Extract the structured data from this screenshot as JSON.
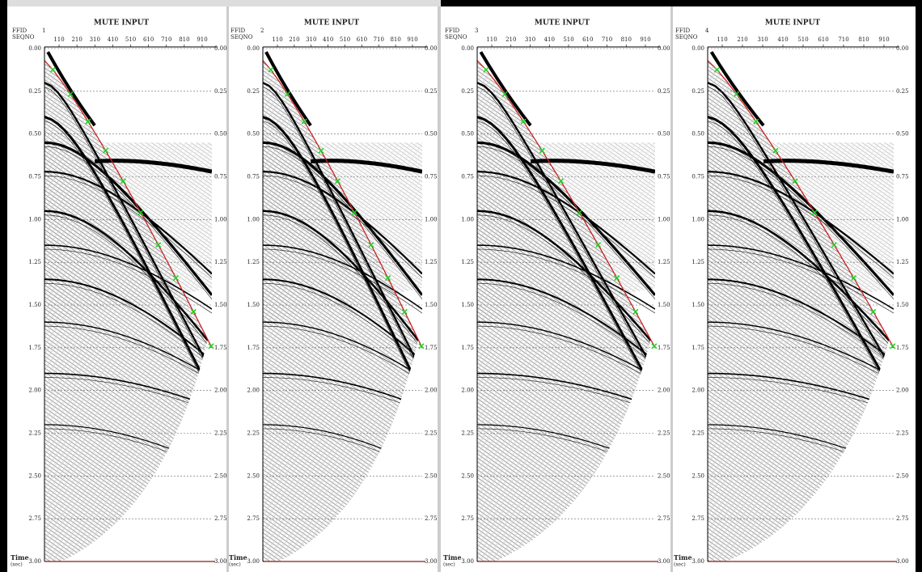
{
  "panels": [
    {
      "title": "MUTE INPUT",
      "ffid_label": "FFID",
      "seqno_label": "SEQNO",
      "ffid": "1",
      "x_ticks": [
        "110",
        "210",
        "310",
        "410",
        "510",
        "610",
        "710",
        "810",
        "910"
      ],
      "y_ticks": [
        "0.00",
        "0.25",
        "0.50",
        "0.75",
        "1.00",
        "1.25",
        "1.50",
        "1.75",
        "2.00",
        "2.25",
        "2.50",
        "2.75",
        "3.00"
      ],
      "time_label": "Time",
      "time_unit": "(sec)"
    },
    {
      "title": "MUTE INPUT",
      "ffid_label": "FFID",
      "seqno_label": "SEQNO",
      "ffid": "2",
      "x_ticks": [
        "110",
        "210",
        "310",
        "410",
        "510",
        "610",
        "710",
        "810",
        "910"
      ],
      "y_ticks": [
        "0.00",
        "0.25",
        "0.50",
        "0.75",
        "1.00",
        "1.25",
        "1.50",
        "1.75",
        "2.00",
        "2.25",
        "2.50",
        "2.75",
        "3.00"
      ],
      "time_label": "Time",
      "time_unit": "(sec)"
    },
    {
      "title": "MUTE INPUT",
      "ffid_label": "FFID",
      "seqno_label": "SEQNO",
      "ffid": "3",
      "x_ticks": [
        "110",
        "210",
        "310",
        "410",
        "510",
        "610",
        "710",
        "810",
        "910"
      ],
      "y_ticks": [
        "0.00",
        "0.25",
        "0.50",
        "0.75",
        "1.00",
        "1.25",
        "1.50",
        "1.75",
        "2.00",
        "2.25",
        "2.50",
        "2.75",
        "3.00"
      ],
      "time_label": "Time",
      "time_unit": "(sec)"
    },
    {
      "title": "MUTE INPUT",
      "ffid_label": "FFID",
      "seqno_label": "SEQNO",
      "ffid": "4",
      "x_ticks": [
        "110",
        "210",
        "310",
        "410",
        "510",
        "610",
        "710",
        "810",
        "910"
      ],
      "y_ticks": [
        "0.00",
        "0.25",
        "0.50",
        "0.75",
        "1.00",
        "1.25",
        "1.50",
        "1.75",
        "2.00",
        "2.25",
        "2.50",
        "2.75",
        "3.00"
      ],
      "time_label": "Time",
      "time_unit": "(sec)"
    }
  ]
}
